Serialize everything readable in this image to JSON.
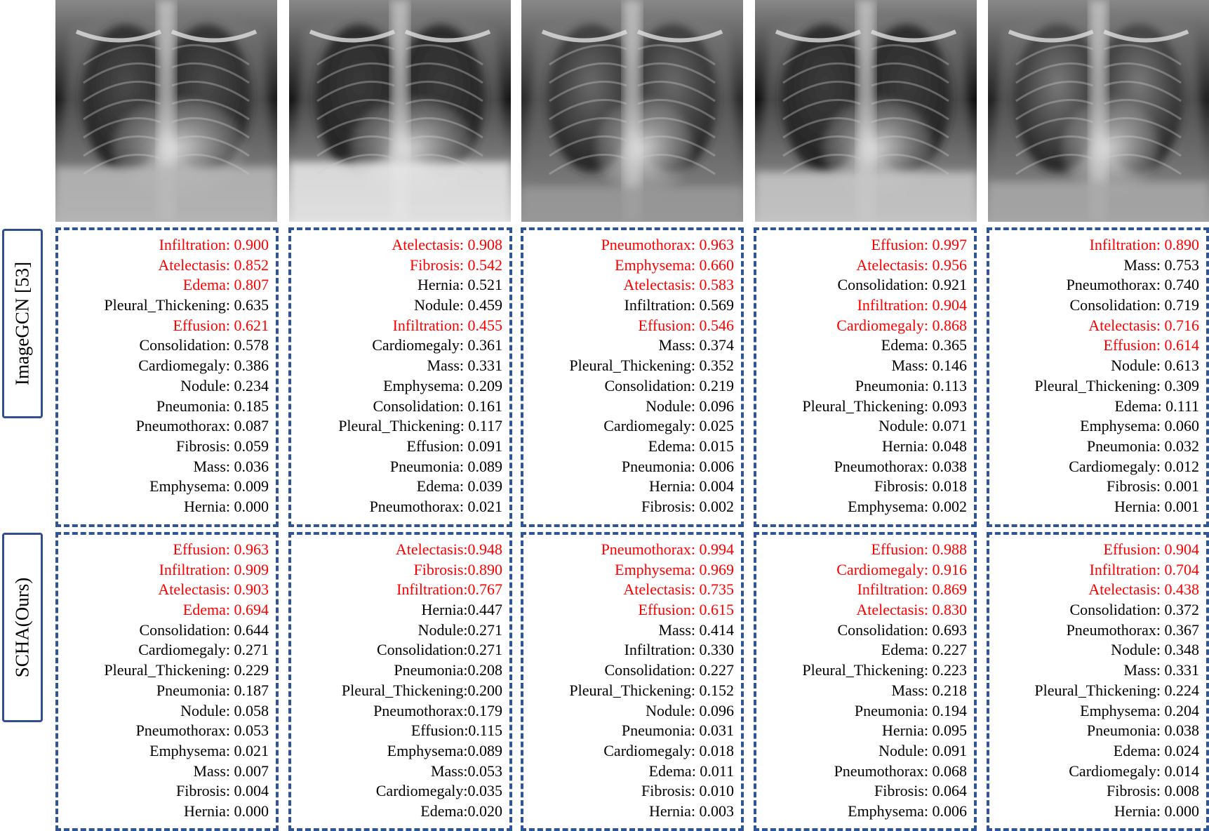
{
  "row_labels": [
    "ImageGCN [53]",
    "SCHA(Ours)"
  ],
  "colors": {
    "positive_label": "#ff0000",
    "panel_border": "#2f5597",
    "label_border": "#2f4f8f"
  },
  "images": [
    {
      "name": "chest-xray-1"
    },
    {
      "name": "chest-xray-2"
    },
    {
      "name": "chest-xray-3"
    },
    {
      "name": "chest-xray-4"
    },
    {
      "name": "chest-xray-5"
    }
  ],
  "rows": [
    {
      "panels": [
        {
          "items": [
            {
              "text": "Infiltration: 0.900",
              "positive": true
            },
            {
              "text": "Atelectasis: 0.852",
              "positive": true
            },
            {
              "text": "Edema: 0.807",
              "positive": true
            },
            {
              "text": "Pleural_Thickening: 0.635",
              "positive": false
            },
            {
              "text": "Effusion: 0.621",
              "positive": true
            },
            {
              "text": "Consolidation: 0.578",
              "positive": false
            },
            {
              "text": "Cardiomegaly: 0.386",
              "positive": false
            },
            {
              "text": "Nodule: 0.234",
              "positive": false
            },
            {
              "text": "Pneumonia: 0.185",
              "positive": false
            },
            {
              "text": "Pneumothorax: 0.087",
              "positive": false
            },
            {
              "text": "Fibrosis: 0.059",
              "positive": false
            },
            {
              "text": "Mass: 0.036",
              "positive": false
            },
            {
              "text": "Emphysema: 0.009",
              "positive": false
            },
            {
              "text": "Hernia: 0.000",
              "positive": false
            }
          ]
        },
        {
          "items": [
            {
              "text": "Atelectasis: 0.908",
              "positive": true
            },
            {
              "text": "Fibrosis: 0.542",
              "positive": true
            },
            {
              "text": "Hernia: 0.521",
              "positive": false
            },
            {
              "text": "Nodule: 0.459",
              "positive": false
            },
            {
              "text": "Infiltration: 0.455",
              "positive": true
            },
            {
              "text": "Cardiomegaly: 0.361",
              "positive": false
            },
            {
              "text": "Mass: 0.331",
              "positive": false
            },
            {
              "text": "Emphysema: 0.209",
              "positive": false
            },
            {
              "text": "Consolidation: 0.161",
              "positive": false
            },
            {
              "text": "Pleural_Thickening: 0.117",
              "positive": false
            },
            {
              "text": "Effusion: 0.091",
              "positive": false
            },
            {
              "text": "Pneumonia: 0.089",
              "positive": false
            },
            {
              "text": "Edema: 0.039",
              "positive": false
            },
            {
              "text": "Pneumothorax: 0.021",
              "positive": false
            }
          ]
        },
        {
          "items": [
            {
              "text": "Pneumothorax: 0.963",
              "positive": true
            },
            {
              "text": "Emphysema: 0.660",
              "positive": true
            },
            {
              "text": "Atelectasis: 0.583",
              "positive": true
            },
            {
              "text": "Infiltration: 0.569",
              "positive": false
            },
            {
              "text": "Effusion: 0.546",
              "positive": true
            },
            {
              "text": "Mass: 0.374",
              "positive": false
            },
            {
              "text": "Pleural_Thickening: 0.352",
              "positive": false
            },
            {
              "text": "Consolidation: 0.219",
              "positive": false
            },
            {
              "text": "Nodule: 0.096",
              "positive": false
            },
            {
              "text": "Cardiomegaly: 0.025",
              "positive": false
            },
            {
              "text": "Edema: 0.015",
              "positive": false
            },
            {
              "text": "Pneumonia: 0.006",
              "positive": false
            },
            {
              "text": "Hernia: 0.004",
              "positive": false
            },
            {
              "text": "Fibrosis: 0.002",
              "positive": false
            }
          ]
        },
        {
          "items": [
            {
              "text": "Effusion: 0.997",
              "positive": true
            },
            {
              "text": "Atelectasis: 0.956",
              "positive": true
            },
            {
              "text": "Consolidation: 0.921",
              "positive": false
            },
            {
              "text": "Infiltration: 0.904",
              "positive": true
            },
            {
              "text": "Cardiomegaly: 0.868",
              "positive": true
            },
            {
              "text": "Edema: 0.365",
              "positive": false
            },
            {
              "text": "Mass: 0.146",
              "positive": false
            },
            {
              "text": "Pneumonia: 0.113",
              "positive": false
            },
            {
              "text": "Pleural_Thickening: 0.093",
              "positive": false
            },
            {
              "text": "Nodule: 0.071",
              "positive": false
            },
            {
              "text": "Hernia: 0.048",
              "positive": false
            },
            {
              "text": "Pneumothorax: 0.038",
              "positive": false
            },
            {
              "text": "Fibrosis: 0.018",
              "positive": false
            },
            {
              "text": "Emphysema: 0.002",
              "positive": false
            }
          ]
        },
        {
          "items": [
            {
              "text": "Infiltration: 0.890",
              "positive": true
            },
            {
              "text": "Mass: 0.753",
              "positive": false
            },
            {
              "text": "Pneumothorax: 0.740",
              "positive": false
            },
            {
              "text": "Consolidation: 0.719",
              "positive": false
            },
            {
              "text": "Atelectasis: 0.716",
              "positive": true
            },
            {
              "text": "Effusion: 0.614",
              "positive": true
            },
            {
              "text": "Nodule: 0.613",
              "positive": false
            },
            {
              "text": "Pleural_Thickening: 0.309",
              "positive": false
            },
            {
              "text": "Edema: 0.111",
              "positive": false
            },
            {
              "text": "Emphysema: 0.060",
              "positive": false
            },
            {
              "text": "Pneumonia: 0.032",
              "positive": false
            },
            {
              "text": "Cardiomegaly: 0.012",
              "positive": false
            },
            {
              "text": "Fibrosis: 0.001",
              "positive": false
            },
            {
              "text": "Hernia: 0.001",
              "positive": false
            }
          ]
        }
      ]
    },
    {
      "panels": [
        {
          "items": [
            {
              "text": "Effusion: 0.963",
              "positive": true
            },
            {
              "text": "Infiltration: 0.909",
              "positive": true
            },
            {
              "text": "Atelectasis: 0.903",
              "positive": true
            },
            {
              "text": "Edema: 0.694",
              "positive": true
            },
            {
              "text": "Consolidation: 0.644",
              "positive": false
            },
            {
              "text": "Cardiomegaly: 0.271",
              "positive": false
            },
            {
              "text": "Pleural_Thickening: 0.229",
              "positive": false
            },
            {
              "text": "Pneumonia: 0.187",
              "positive": false
            },
            {
              "text": "Nodule: 0.058",
              "positive": false
            },
            {
              "text": "Pneumothorax: 0.053",
              "positive": false
            },
            {
              "text": "Emphysema: 0.021",
              "positive": false
            },
            {
              "text": "Mass: 0.007",
              "positive": false
            },
            {
              "text": "Fibrosis: 0.004",
              "positive": false
            },
            {
              "text": "Hernia: 0.000",
              "positive": false
            }
          ]
        },
        {
          "items": [
            {
              "text": "Atelectasis:0.948",
              "positive": true
            },
            {
              "text": "Fibrosis:0.890",
              "positive": true
            },
            {
              "text": "Infiltration:0.767",
              "positive": true
            },
            {
              "text": "Hernia:0.447",
              "positive": false
            },
            {
              "text": "Nodule:0.271",
              "positive": false
            },
            {
              "text": "Consolidation:0.271",
              "positive": false
            },
            {
              "text": "Pneumonia:0.208",
              "positive": false
            },
            {
              "text": "Pleural_Thickening:0.200",
              "positive": false
            },
            {
              "text": "Pneumothorax:0.179",
              "positive": false
            },
            {
              "text": "Effusion:0.115",
              "positive": false
            },
            {
              "text": "Emphysema:0.089",
              "positive": false
            },
            {
              "text": "Mass:0.053",
              "positive": false
            },
            {
              "text": "Cardiomegaly:0.035",
              "positive": false
            },
            {
              "text": "Edema:0.020",
              "positive": false
            }
          ]
        },
        {
          "items": [
            {
              "text": "Pneumothorax: 0.994",
              "positive": true
            },
            {
              "text": "Emphysema: 0.969",
              "positive": true
            },
            {
              "text": "Atelectasis: 0.735",
              "positive": true
            },
            {
              "text": "Effusion: 0.615",
              "positive": true
            },
            {
              "text": "Mass: 0.414",
              "positive": false
            },
            {
              "text": "Infiltration: 0.330",
              "positive": false
            },
            {
              "text": "Consolidation: 0.227",
              "positive": false
            },
            {
              "text": "Pleural_Thickening: 0.152",
              "positive": false
            },
            {
              "text": "Nodule: 0.096",
              "positive": false
            },
            {
              "text": "Pneumonia: 0.031",
              "positive": false
            },
            {
              "text": "Cardiomegaly: 0.018",
              "positive": false
            },
            {
              "text": "Edema: 0.011",
              "positive": false
            },
            {
              "text": "Fibrosis: 0.010",
              "positive": false
            },
            {
              "text": "Hernia: 0.003",
              "positive": false
            }
          ]
        },
        {
          "items": [
            {
              "text": "Effusion: 0.988",
              "positive": true
            },
            {
              "text": "Cardiomegaly: 0.916",
              "positive": true
            },
            {
              "text": "Infiltration: 0.869",
              "positive": true
            },
            {
              "text": "Atelectasis: 0.830",
              "positive": true
            },
            {
              "text": "Consolidation: 0.693",
              "positive": false
            },
            {
              "text": "Edema: 0.227",
              "positive": false
            },
            {
              "text": "Pleural_Thickening: 0.223",
              "positive": false
            },
            {
              "text": "Mass: 0.218",
              "positive": false
            },
            {
              "text": "Pneumonia: 0.194",
              "positive": false
            },
            {
              "text": "Hernia: 0.095",
              "positive": false
            },
            {
              "text": "Nodule: 0.091",
              "positive": false
            },
            {
              "text": "Pneumothorax: 0.068",
              "positive": false
            },
            {
              "text": "Fibrosis: 0.064",
              "positive": false
            },
            {
              "text": "Emphysema: 0.006",
              "positive": false
            }
          ]
        },
        {
          "items": [
            {
              "text": "Effusion: 0.904",
              "positive": true
            },
            {
              "text": "Infiltration: 0.704",
              "positive": true
            },
            {
              "text": "Atelectasis: 0.438",
              "positive": true
            },
            {
              "text": "Consolidation: 0.372",
              "positive": false
            },
            {
              "text": "Pneumothorax: 0.367",
              "positive": false
            },
            {
              "text": "Nodule: 0.348",
              "positive": false
            },
            {
              "text": "Mass: 0.331",
              "positive": false
            },
            {
              "text": "Pleural_Thickening: 0.224",
              "positive": false
            },
            {
              "text": "Emphysema: 0.204",
              "positive": false
            },
            {
              "text": "Pneumonia: 0.038",
              "positive": false
            },
            {
              "text": "Edema: 0.024",
              "positive": false
            },
            {
              "text": "Cardiomegaly: 0.014",
              "positive": false
            },
            {
              "text": "Fibrosis: 0.008",
              "positive": false
            },
            {
              "text": "Hernia: 0.000",
              "positive": false
            }
          ]
        }
      ]
    }
  ]
}
